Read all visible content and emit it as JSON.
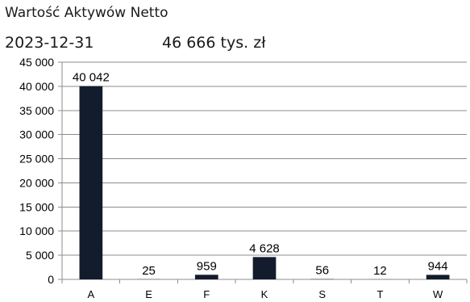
{
  "header": {
    "title": "Wartość Aktywów Netto",
    "date": "2023-12-31",
    "total": "46 666 tys. zł"
  },
  "colors": {
    "bar": "#131c2c",
    "grid": "#8c8c8c",
    "axis": "#8c8c8c"
  },
  "chart_data": {
    "type": "bar",
    "title": "Wartość Aktywów Netto",
    "categories": [
      "A",
      "E",
      "F",
      "K",
      "S",
      "T",
      "W"
    ],
    "values": [
      40042,
      25,
      959,
      4628,
      56,
      12,
      944
    ],
    "value_labels": [
      "40 042",
      "25",
      "959",
      "4 628",
      "56",
      "12",
      "944"
    ],
    "ylim": [
      0,
      45000
    ],
    "yticks": [
      0,
      5000,
      10000,
      15000,
      20000,
      25000,
      30000,
      35000,
      40000,
      45000
    ],
    "ytick_labels": [
      "0",
      "5 000",
      "10 000",
      "15 000",
      "20 000",
      "25 000",
      "30 000",
      "35 000",
      "40 000",
      "45 000"
    ],
    "xlabel": "",
    "ylabel": "",
    "grid": true,
    "legend": "none"
  }
}
